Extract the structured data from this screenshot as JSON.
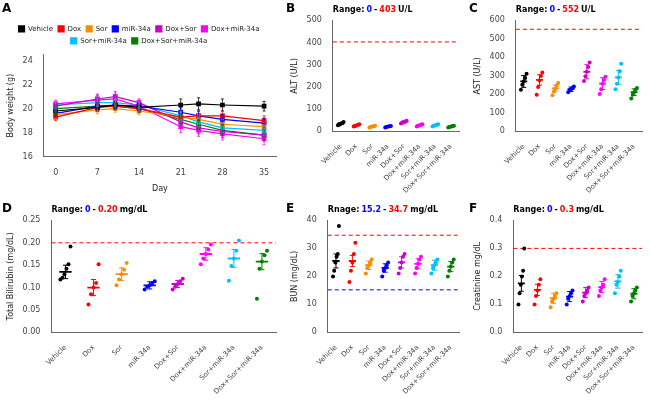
{
  "chart_data": [
    {
      "type": "line",
      "title": "A",
      "xlabel": "Day",
      "ylabel": "Body weight (g)",
      "x": [
        0,
        7,
        10,
        14,
        21,
        24,
        28,
        35
      ],
      "series": [
        {
          "name": "Vehicle",
          "color": "#000000",
          "values": [
            19.8,
            20.1,
            20.3,
            20.1,
            20.3,
            20.4,
            20.3,
            20.2
          ],
          "errors": [
            0.3,
            0.3,
            0.3,
            0.3,
            0.5,
            0.5,
            0.5,
            0.4
          ]
        },
        {
          "name": "Dox",
          "color": "#FF0000",
          "values": [
            19.3,
            20.1,
            20.2,
            20.0,
            19.3,
            19.4,
            19.4,
            19.0
          ],
          "errors": [
            0.3,
            0.3,
            0.3,
            0.3,
            0.4,
            0.4,
            0.4,
            0.4
          ]
        },
        {
          "name": "Sor",
          "color": "#FF8C00",
          "values": [
            19.5,
            19.9,
            20.0,
            19.8,
            19.3,
            19.1,
            18.7,
            18.5
          ],
          "errors": [
            0.3,
            0.3,
            0.3,
            0.3,
            0.4,
            0.4,
            0.4,
            0.4
          ]
        },
        {
          "name": "miR-34a",
          "color": "#0000FF",
          "values": [
            19.6,
            20.2,
            20.3,
            20.2,
            19.7,
            19.4,
            19.1,
            18.8
          ],
          "errors": [
            0.3,
            0.3,
            0.3,
            0.3,
            0.4,
            0.4,
            0.4,
            0.4
          ]
        },
        {
          "name": "Dox+Sor",
          "color": "#CC00CC",
          "values": [
            20.2,
            20.8,
            21.0,
            20.5,
            18.9,
            18.4,
            18.1,
            17.8
          ],
          "errors": [
            0.3,
            0.4,
            0.4,
            0.3,
            0.5,
            0.5,
            0.5,
            0.5
          ]
        },
        {
          "name": "Dox+miR-34a",
          "color": "#FF00FF",
          "values": [
            20.4,
            20.7,
            20.8,
            20.2,
            18.5,
            18.2,
            17.9,
            17.5
          ],
          "errors": [
            0.3,
            0.4,
            0.4,
            0.3,
            0.5,
            0.5,
            0.5,
            0.5
          ]
        },
        {
          "name": "Sor+miR-34a",
          "color": "#00BFFF",
          "values": [
            20.3,
            20.5,
            20.5,
            20.3,
            19.4,
            18.9,
            18.4,
            18.2
          ],
          "errors": [
            0.3,
            0.3,
            0.3,
            0.3,
            0.4,
            0.4,
            0.4,
            0.4
          ]
        },
        {
          "name": "Dox+Sor+miR-34a",
          "color": "#008000",
          "values": [
            20.0,
            20.2,
            20.2,
            20.0,
            19.1,
            18.7,
            18.2,
            17.8
          ],
          "errors": [
            0.3,
            0.3,
            0.3,
            0.3,
            0.4,
            0.4,
            0.4,
            0.4
          ]
        }
      ],
      "xlim": [
        -2,
        37
      ],
      "xticks": [
        0,
        7,
        14,
        21,
        28,
        35
      ],
      "ylim": [
        16,
        24.5
      ],
      "yticks": [
        16,
        18,
        20,
        22,
        24
      ],
      "marker": "square",
      "legend": "top",
      "grid": false
    },
    {
      "type": "strip",
      "title": "B",
      "ylabel": "ALT (U/L)",
      "categories": [
        "Vehicle",
        "Dox",
        "Sor",
        "miR-34a",
        "Dox+Sor",
        "Dox+miR-34a",
        "Sor+miR-34a",
        "Dox+Sor+miR-34a"
      ],
      "colors": [
        "#000000",
        "#FF0000",
        "#FF8C00",
        "#0000FF",
        "#CC00CC",
        "#FF00FF",
        "#00BFFF",
        "#008000"
      ],
      "values": [
        [
          28,
          30,
          33,
          36,
          38,
          42
        ],
        [
          22,
          24,
          27,
          30,
          32
        ],
        [
          18,
          20,
          22,
          24,
          25
        ],
        [
          18,
          20,
          22,
          23,
          24
        ],
        [
          36,
          38,
          42,
          45,
          48
        ],
        [
          22,
          25,
          28,
          30,
          32
        ],
        [
          22,
          25,
          28,
          30,
          32
        ],
        [
          18,
          20,
          22,
          24,
          25
        ]
      ],
      "means": [
        35,
        28,
        22,
        22,
        42,
        28,
        28,
        22
      ],
      "sems": [
        4,
        3,
        3,
        2,
        5,
        3,
        3,
        2
      ],
      "hlines": [
        {
          "value": 403,
          "color": "red",
          "line_style": "dashed"
        }
      ],
      "annotations": [
        {
          "text": "Range:",
          "color": "black"
        },
        {
          "text": "0",
          "color": "blue"
        },
        {
          "text": "-",
          "color": "black"
        },
        {
          "text": "403",
          "color": "red"
        },
        {
          "text": "U/L",
          "color": "black"
        }
      ],
      "ylim": [
        0,
        500
      ],
      "yticks": [
        0,
        100,
        200,
        300,
        400,
        500
      ],
      "marker": "circle",
      "grid": false
    },
    {
      "type": "strip",
      "title": "C",
      "ylabel": "AST (U/L)",
      "categories": [
        "Vehicle",
        "Dox",
        "Sor",
        "miR-34a",
        "Dox+Sor",
        "Dox+miR-34a",
        "Sor+miR-34a",
        "Dox+Sor+miR-34a"
      ],
      "colors": [
        "#000000",
        "#FF0000",
        "#FF8C00",
        "#0000FF",
        "#CC00CC",
        "#FF00FF",
        "#00BFFF",
        "#008000"
      ],
      "values": [
        [
          225,
          252,
          270,
          288,
          312
        ],
        [
          198,
          240,
          275,
          300,
          318
        ],
        [
          195,
          215,
          230,
          248,
          262
        ],
        [
          212,
          222,
          228,
          235,
          242
        ],
        [
          272,
          298,
          322,
          348,
          372
        ],
        [
          202,
          228,
          258,
          278,
          295
        ],
        [
          228,
          258,
          292,
          325,
          365
        ],
        [
          178,
          198,
          212,
          225,
          235
        ]
      ],
      "means": [
        270,
        278,
        232,
        228,
        322,
        258,
        292,
        212
      ],
      "sems": [
        32,
        28,
        18,
        12,
        38,
        32,
        38,
        18
      ],
      "hlines": [
        {
          "value": 552,
          "color": "red",
          "line_style": "dashed"
        }
      ],
      "annotations": [
        {
          "text": "Range:",
          "color": "black"
        },
        {
          "text": "0",
          "color": "blue"
        },
        {
          "text": "-",
          "color": "black"
        },
        {
          "text": "552",
          "color": "red"
        },
        {
          "text": "U/L",
          "color": "black"
        }
      ],
      "ylim": [
        0,
        600
      ],
      "yticks": [
        0,
        100,
        200,
        300,
        400,
        500,
        600
      ],
      "marker": "circle",
      "grid": false
    },
    {
      "type": "strip",
      "title": "D",
      "ylabel": "Total Bilirubin (mg/dL)",
      "categories": [
        "Vehicle",
        "Dox",
        "Sor",
        "miR-34a",
        "Dox+Sor",
        "Dox+miR-34a",
        "Sor+miR-34a",
        "Dox+Sor+miR-34a"
      ],
      "colors": [
        "#000000",
        "#FF0000",
        "#FF8C00",
        "#0000FF",
        "#CC00CC",
        "#FF00FF",
        "#00BFFF",
        "#008000"
      ],
      "values": [
        [
          0.118,
          0.122,
          0.13,
          0.142,
          0.152,
          0.192
        ],
        [
          0.062,
          0.085,
          0.1,
          0.11,
          0.152
        ],
        [
          0.105,
          0.118,
          0.13,
          0.14,
          0.155
        ],
        [
          0.096,
          0.102,
          0.105,
          0.11,
          0.114
        ],
        [
          0.096,
          0.102,
          0.108,
          0.114,
          0.12
        ],
        [
          0.152,
          0.165,
          0.175,
          0.185,
          0.196
        ],
        [
          0.115,
          0.148,
          0.165,
          0.182,
          0.205
        ],
        [
          0.075,
          0.142,
          0.158,
          0.172,
          0.182
        ]
      ],
      "means": [
        0.135,
        0.1,
        0.13,
        0.105,
        0.108,
        0.175,
        0.165,
        0.158
      ],
      "sems": [
        0.015,
        0.018,
        0.014,
        0.008,
        0.008,
        0.014,
        0.02,
        0.018
      ],
      "hlines": [
        {
          "value": 0.2,
          "color": "red",
          "line_style": "dashed"
        }
      ],
      "annotations": [
        {
          "text": "Range:",
          "color": "black"
        },
        {
          "text": "0",
          "color": "blue"
        },
        {
          "text": "-",
          "color": "black"
        },
        {
          "text": "0.20",
          "color": "red"
        },
        {
          "text": "mg/dL",
          "color": "black"
        }
      ],
      "ylim": [
        0,
        0.25
      ],
      "yticks": [
        {
          "value": 0,
          "label": "0.00"
        },
        0.05,
        {
          "value": 0.1,
          "label": "0.10"
        },
        0.15,
        {
          "value": 0.2,
          "label": "0.20"
        },
        0.25
      ],
      "marker": "circle",
      "grid": false
    },
    {
      "type": "strip",
      "title": "E",
      "ylabel": "BUN (mg/dL)",
      "categories": [
        "Vehicle",
        "Dox",
        "Sor",
        "miR-34a",
        "Dox+Sor",
        "Dox+miR-34a",
        "Sor+miR-34a",
        "Dox+Sor+miR-34a"
      ],
      "colors": [
        "#000000",
        "#FF0000",
        "#FF8C00",
        "#0000FF",
        "#CC00CC",
        "#FF00FF",
        "#00BFFF",
        "#008000"
      ],
      "values": [
        [
          20,
          22,
          25,
          27,
          28,
          38
        ],
        [
          18,
          22,
          25,
          28,
          32
        ],
        [
          21,
          23,
          24,
          25,
          26
        ],
        [
          20,
          22,
          23,
          24,
          25
        ],
        [
          21,
          23,
          25,
          27,
          28
        ],
        [
          21,
          23,
          24.5,
          26,
          27
        ],
        [
          21,
          23,
          24,
          25,
          26
        ],
        [
          20,
          22,
          23.5,
          25,
          26
        ]
      ],
      "means": [
        25.5,
        25.5,
        24.0,
        23.0,
        25.0,
        24.5,
        24.0,
        23.5
      ],
      "sems": [
        2.5,
        2.0,
        1.5,
        1.5,
        2.0,
        1.8,
        1.8,
        1.8
      ],
      "hlines": [
        {
          "value": 34.7,
          "color": "red",
          "line_style": "dashed"
        },
        {
          "value": 15.2,
          "color": "blue",
          "line_style": "dashed"
        }
      ],
      "annotations": [
        {
          "text": "Rnage:",
          "color": "black"
        },
        {
          "text": "15.2",
          "color": "blue"
        },
        {
          "text": "-",
          "color": "black"
        },
        {
          "text": "34.7",
          "color": "red"
        },
        {
          "text": "mg/dL",
          "color": "black"
        }
      ],
      "ylim": [
        0,
        40
      ],
      "yticks": [
        0,
        10,
        20,
        30,
        40
      ],
      "marker": "circle",
      "grid": false
    },
    {
      "type": "strip",
      "title": "F",
      "ylabel": "Creatinine mg/dL",
      "categories": [
        "Vehicle",
        "Dox",
        "Sor",
        "miR-34a",
        "Dox+Sor",
        "Dox+miR-34a",
        "Sor+miR-34a",
        "Dox+Sor+miR-34a"
      ],
      "colors": [
        "#000000",
        "#FF0000",
        "#FF8C00",
        "#0000FF",
        "#CC00CC",
        "#FF00FF",
        "#00BFFF",
        "#008000"
      ],
      "values": [
        [
          0.1,
          0.14,
          0.17,
          0.2,
          0.22,
          0.3
        ],
        [
          0.1,
          0.13,
          0.15,
          0.17,
          0.19
        ],
        [
          0.09,
          0.11,
          0.12,
          0.13,
          0.14
        ],
        [
          0.1,
          0.12,
          0.13,
          0.14,
          0.15
        ],
        [
          0.11,
          0.13,
          0.14,
          0.15,
          0.16
        ],
        [
          0.13,
          0.15,
          0.16,
          0.17,
          0.19
        ],
        [
          0.14,
          0.17,
          0.18,
          0.2,
          0.22
        ],
        [
          0.11,
          0.13,
          0.14,
          0.15,
          0.16
        ]
      ],
      "means": [
        0.175,
        0.152,
        0.122,
        0.128,
        0.142,
        0.162,
        0.182,
        0.138
      ],
      "sems": [
        0.028,
        0.02,
        0.018,
        0.018,
        0.018,
        0.02,
        0.024,
        0.018
      ],
      "hlines": [
        {
          "value": 0.3,
          "color": "red",
          "line_style": "dashed"
        }
      ],
      "annotations": [
        {
          "text": "Range:",
          "color": "black"
        },
        {
          "text": "0",
          "color": "blue"
        },
        {
          "text": "-",
          "color": "black"
        },
        {
          "text": "0.3",
          "color": "red"
        },
        {
          "text": "mg/dL",
          "color": "black"
        }
      ],
      "ylim": [
        0,
        0.4
      ],
      "yticks": [
        {
          "value": 0,
          "label": "0.0"
        },
        0.1,
        0.2,
        0.3,
        0.4
      ],
      "marker": "circle",
      "grid": false
    }
  ]
}
